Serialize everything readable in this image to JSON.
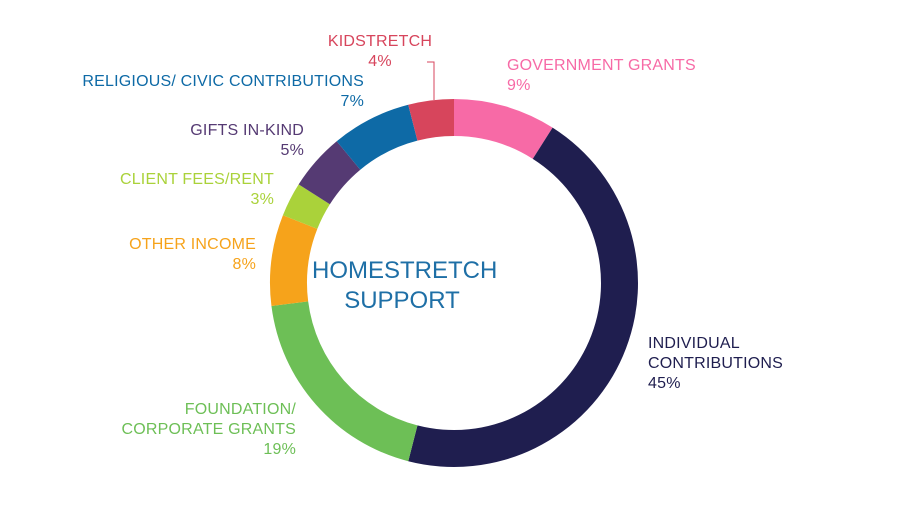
{
  "chart_data": {
    "type": "pie",
    "title": "HOMESTRETCH SUPPORT",
    "title_lines": [
      "HOMESTRETCH",
      "SUPPORT"
    ],
    "slices": [
      {
        "id": "government",
        "lines": [
          "GOVERNMENT GRANTS"
        ],
        "pct_label": "9%",
        "value": 9,
        "color": "#f76aa6"
      },
      {
        "id": "individual",
        "lines": [
          "INDIVIDUAL",
          "CONTRIBUTIONS"
        ],
        "pct_label": "45%",
        "value": 45,
        "color": "#1f1e4f"
      },
      {
        "id": "foundation",
        "lines": [
          "FOUNDATION/",
          "CORPORATE GRANTS"
        ],
        "pct_label": "19%",
        "value": 19,
        "color": "#6dbf56"
      },
      {
        "id": "other",
        "lines": [
          "OTHER INCOME"
        ],
        "pct_label": "8%",
        "value": 8,
        "color": "#f6a31b"
      },
      {
        "id": "client",
        "lines": [
          "CLIENT FEES/RENT"
        ],
        "pct_label": "3%",
        "value": 3,
        "color": "#aad23a"
      },
      {
        "id": "gifts",
        "lines": [
          "GIFTS IN-KIND"
        ],
        "pct_label": "5%",
        "value": 5,
        "color": "#553a73"
      },
      {
        "id": "religious",
        "lines": [
          "RELIGIOUS/ CIVIC CONTRIBUTIONS"
        ],
        "pct_label": "7%",
        "value": 7,
        "color": "#0e6aa6"
      },
      {
        "id": "kidstretch",
        "lines": [
          "KIDSTRETCH"
        ],
        "pct_label": "4%",
        "value": 4,
        "color": "#d7455c"
      }
    ]
  }
}
